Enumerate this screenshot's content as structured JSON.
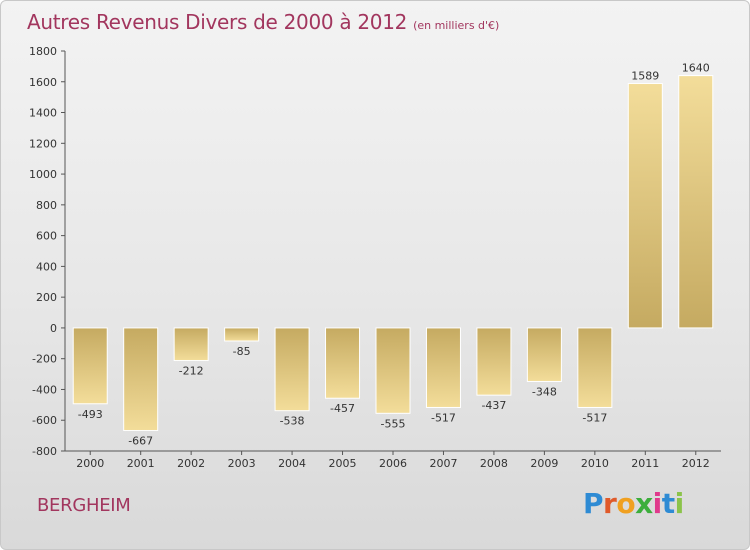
{
  "header": {
    "title": "Autres Revenus Divers de 2000 à 2012",
    "unit": "(en milliers d'€)"
  },
  "footer": {
    "commune": "BERGHEIM",
    "logo_letters": [
      "P",
      "r",
      "o",
      "x",
      "i",
      "t",
      "i"
    ]
  },
  "colors": {
    "title": "#a2365e",
    "bar_light": "#f3dd9a",
    "bar_dark": "#c5aa61",
    "axis": "#555555",
    "logo": [
      "#2e8bd4",
      "#e05a2a",
      "#f0a020",
      "#3cae3c",
      "#e03a8c",
      "#2e8bd4",
      "#8bc34a"
    ]
  },
  "chart_data": {
    "type": "bar",
    "categories": [
      "2000",
      "2001",
      "2002",
      "2003",
      "2004",
      "2005",
      "2006",
      "2007",
      "2008",
      "2009",
      "2010",
      "2011",
      "2012"
    ],
    "values": [
      -493,
      -667,
      -212,
      -85,
      -538,
      -457,
      -555,
      -517,
      -437,
      -348,
      -517,
      1589,
      1640
    ],
    "value_labels": [
      "-493",
      "-667",
      "-212",
      "-85",
      "-538",
      "-457",
      "-555",
      "-517",
      "-437",
      "-348",
      "-517",
      "1589",
      "1640"
    ],
    "yticks": [
      1800,
      1600,
      1400,
      1200,
      1000,
      800,
      600,
      400,
      200,
      0,
      -200,
      -400,
      -600,
      -800
    ],
    "ylim": [
      -800,
      1800
    ],
    "grid": false,
    "xlabel": "",
    "ylabel": ""
  }
}
